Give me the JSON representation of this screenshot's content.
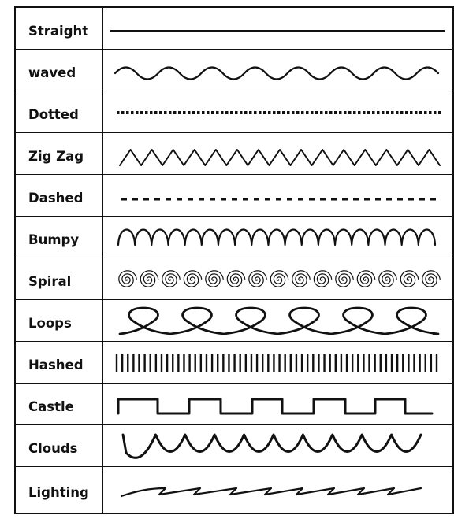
{
  "rows": [
    {
      "label": "Straight",
      "style": "straight"
    },
    {
      "label": "waved",
      "style": "waved"
    },
    {
      "label": "Dotted",
      "style": "dotted"
    },
    {
      "label": "Zig Zag",
      "style": "zigzag"
    },
    {
      "label": "Dashed",
      "style": "dashed"
    },
    {
      "label": "Bumpy",
      "style": "bumpy"
    },
    {
      "label": "Spiral",
      "style": "spiral"
    },
    {
      "label": "Loops",
      "style": "loops"
    },
    {
      "label": "Hashed",
      "style": "hashed"
    },
    {
      "label": "Castle",
      "style": "castle"
    },
    {
      "label": "Clouds",
      "style": "clouds"
    },
    {
      "label": "Lighting",
      "style": "lighting"
    }
  ],
  "colors": {
    "line": "#111111",
    "border": "#111111",
    "background": "#ffffff"
  }
}
